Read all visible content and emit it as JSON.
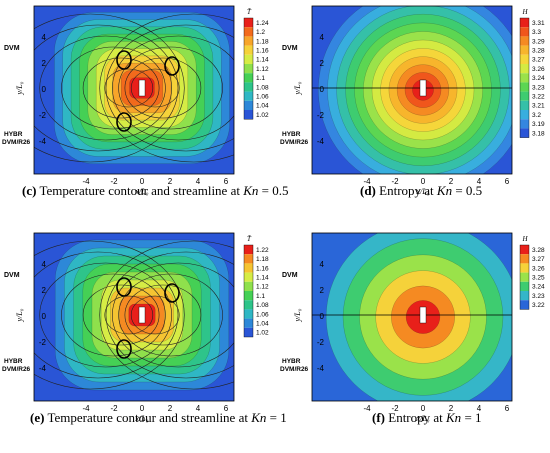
{
  "figure": {
    "panels": [
      {
        "id": "c",
        "caption_letter": "(c)",
        "caption_text": "Temperature contour and streamline at",
        "caption_var": "Kn",
        "caption_eq": "= 0.5",
        "colorbar_title": "T̄",
        "colorbar_ticks": [
          "1.24",
          "1.2",
          "1.18",
          "1.16",
          "1.14",
          "1.12",
          "1.1",
          "1.08",
          "1.06",
          "1.04",
          "1.02"
        ],
        "colorbar_colors": [
          "#e8201a",
          "#f26a1c",
          "#f7a52a",
          "#f5d23a",
          "#d6ec45",
          "#8fe04c",
          "#45d055",
          "#2ec48a",
          "#2fb7c4",
          "#2d88d8",
          "#2a55d6"
        ],
        "label_top": "DVM",
        "label_bottom_1": "HYBR",
        "label_bottom_2": "DVM/R26",
        "y_ticks": [
          "4",
          "2",
          "0",
          "-2",
          "-4"
        ],
        "x_ticks": [
          "-4",
          "-2",
          "0",
          "2",
          "4",
          "6"
        ],
        "xlabel": "x/L₀",
        "ylabel": "y/L₀"
      },
      {
        "id": "d",
        "caption_letter": "(d)",
        "caption_text": "Entropy at",
        "caption_var": "Kn",
        "caption_eq": "= 0.5",
        "colorbar_title": "H",
        "colorbar_ticks": [
          "3.31",
          "3.3",
          "3.29",
          "3.28",
          "3.27",
          "3.26",
          "3.24",
          "3.23",
          "3.22",
          "3.21",
          "3.2",
          "3.19",
          "3.18"
        ],
        "colorbar_colors": [
          "#e8201a",
          "#f0561c",
          "#f58a22",
          "#f7b52c",
          "#f5d63a",
          "#d4ea42",
          "#9ae24a",
          "#5cd652",
          "#3ecc70",
          "#35c0a8",
          "#38aede",
          "#3486e0",
          "#2a55d6"
        ],
        "label_top": "DVM",
        "label_bottom_1": "HYBR",
        "label_bottom_2": "DVM/R26",
        "y_ticks": [
          "4",
          "2",
          "0",
          "-2",
          "-4"
        ],
        "x_ticks": [
          "-4",
          "-2",
          "0",
          "2",
          "4",
          "6"
        ],
        "xlabel": "x/L₀",
        "ylabel": "y/L₀"
      },
      {
        "id": "e",
        "caption_letter": "(e)",
        "caption_text": "Temperature contour and streamline at",
        "caption_var": "Kn",
        "caption_eq": "= 1",
        "colorbar_title": "T̄",
        "colorbar_ticks": [
          "1.22",
          "1.18",
          "1.16",
          "1.14",
          "1.12",
          "1.1",
          "1.08",
          "1.06",
          "1.04",
          "1.02"
        ],
        "colorbar_colors": [
          "#e8201a",
          "#f58a22",
          "#f5c432",
          "#d6ec45",
          "#8fe04c",
          "#45d055",
          "#2ec48a",
          "#2fb7c4",
          "#2d88d8",
          "#2a55d6"
        ],
        "label_top": "DVM",
        "label_bottom_1": "HYBR",
        "label_bottom_2": "DVM/R26",
        "y_ticks": [
          "4",
          "2",
          "0",
          "-2",
          "-4"
        ],
        "x_ticks": [
          "-4",
          "-2",
          "0",
          "2",
          "4",
          "6"
        ],
        "xlabel": "x/L₀",
        "ylabel": "y/L₀"
      },
      {
        "id": "f",
        "caption_letter": "(f)",
        "caption_text": "Entropy at",
        "caption_var": "Kn",
        "caption_eq": "= 1",
        "colorbar_title": "H",
        "colorbar_ticks": [
          "3.28",
          "3.27",
          "3.26",
          "3.25",
          "3.24",
          "3.23",
          "3.22"
        ],
        "colorbar_colors": [
          "#e8201a",
          "#f58a22",
          "#f5d23a",
          "#9ae24a",
          "#3ecc70",
          "#35b6c8",
          "#2a66d8"
        ],
        "label_top": "DVM",
        "label_bottom_1": "HYBR",
        "label_bottom_2": "DVM/R26",
        "y_ticks": [
          "4",
          "2",
          "0",
          "-2",
          "-4"
        ],
        "x_ticks": [
          "-4",
          "-2",
          "0",
          "2",
          "4",
          "6"
        ],
        "xlabel": "x/L₀",
        "ylabel": "y/L₀"
      }
    ]
  }
}
